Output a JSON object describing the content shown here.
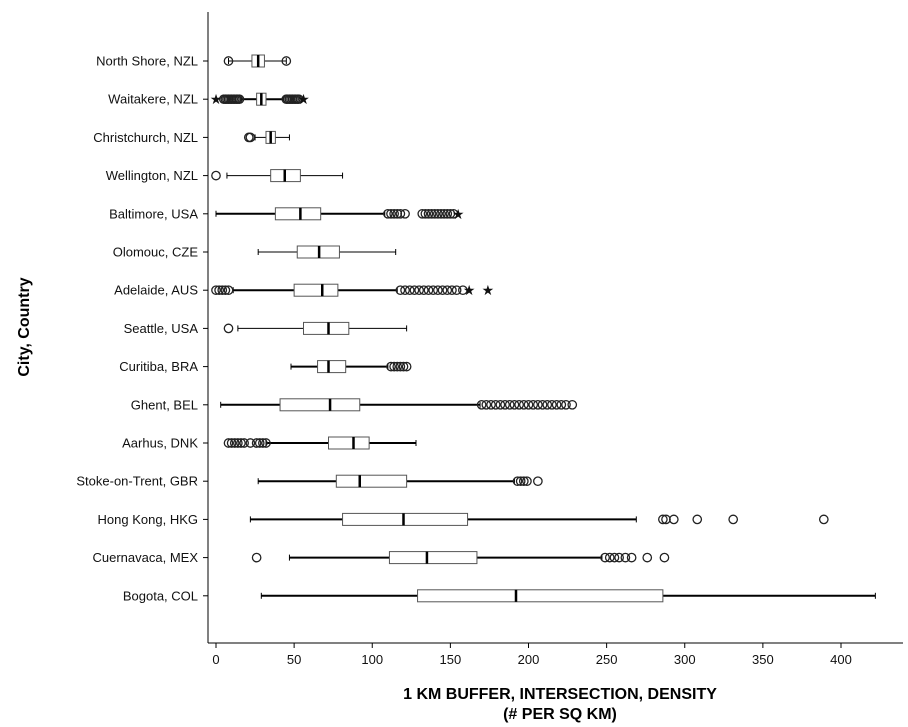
{
  "chart_data": {
    "type": "boxplot",
    "orientation": "horizontal",
    "xlabel_line1": "1 KM BUFFER, INTERSECTION, DENSITY",
    "xlabel_line2": "(# PER SQ KM)",
    "ylabel": "City, Country",
    "xlim": [
      -4,
      440
    ],
    "xticks": [
      0,
      50,
      100,
      150,
      200,
      250,
      300,
      350,
      400
    ],
    "grid": false,
    "series": [
      {
        "name": "North Shore, NZL",
        "whisker_low": 8,
        "q1": 23,
        "median": 27,
        "q3": 31,
        "whisker_high": 45,
        "outliers": [
          8,
          45
        ],
        "extremes": []
      },
      {
        "name": "Waitakere, NZL",
        "whisker_low": 16,
        "q1": 26,
        "median": 29,
        "q3": 32,
        "whisker_high": 43,
        "outliers": [
          5,
          6,
          7,
          8,
          9,
          10,
          11,
          12,
          13,
          14,
          15,
          45,
          46,
          47,
          48,
          49,
          50,
          51,
          52,
          53
        ],
        "extremes": [
          0,
          56
        ]
      },
      {
        "name": "Christchurch, NZL",
        "whisker_low": 25,
        "q1": 32,
        "median": 35,
        "q3": 38,
        "whisker_high": 47,
        "outliers": [
          21,
          22
        ],
        "extremes": []
      },
      {
        "name": "Wellington, NZL",
        "whisker_low": 7,
        "q1": 35,
        "median": 44,
        "q3": 54,
        "whisker_high": 81,
        "outliers": [
          0
        ],
        "extremes": []
      },
      {
        "name": "Baltimore, USA",
        "whisker_low": 0,
        "q1": 38,
        "median": 54,
        "q3": 67,
        "whisker_high": 108,
        "outliers": [
          110,
          112,
          114,
          116,
          118,
          121,
          132,
          134,
          136,
          138,
          140,
          142,
          144,
          146,
          148,
          150,
          152
        ],
        "extremes": [
          155
        ]
      },
      {
        "name": "Olomouc, CZE",
        "whisker_low": 27,
        "q1": 52,
        "median": 66,
        "q3": 79,
        "whisker_high": 115,
        "outliers": [],
        "extremes": []
      },
      {
        "name": "Adelaide, AUS",
        "whisker_low": 11,
        "q1": 50,
        "median": 68,
        "q3": 78,
        "whisker_high": 116,
        "outliers": [
          0,
          2,
          4,
          6,
          8,
          118,
          121,
          124,
          127,
          130,
          133,
          136,
          139,
          142,
          145,
          148,
          151,
          154,
          158
        ],
        "extremes": [
          162,
          174
        ]
      },
      {
        "name": "Seattle, USA",
        "whisker_low": 14,
        "q1": 56,
        "median": 72,
        "q3": 85,
        "whisker_high": 122,
        "outliers": [
          8
        ],
        "extremes": []
      },
      {
        "name": "Curitiba, BRA",
        "whisker_low": 48,
        "q1": 65,
        "median": 72,
        "q3": 83,
        "whisker_high": 110,
        "outliers": [
          112,
          114,
          116,
          118,
          120,
          122
        ],
        "extremes": []
      },
      {
        "name": "Ghent, BEL",
        "whisker_low": 3,
        "q1": 41,
        "median": 73,
        "q3": 92,
        "whisker_high": 169,
        "outliers": [
          170,
          173,
          176,
          179,
          182,
          185,
          188,
          191,
          194,
          197,
          200,
          203,
          206,
          209,
          212,
          215,
          218,
          221,
          224,
          228
        ],
        "extremes": []
      },
      {
        "name": "Aarhus, DNK",
        "whisker_low": 32,
        "q1": 72,
        "median": 88,
        "q3": 98,
        "whisker_high": 128,
        "outliers": [
          8,
          10,
          12,
          14,
          16,
          18,
          22,
          26,
          28,
          30,
          32
        ],
        "extremes": []
      },
      {
        "name": "Stoke-on-Trent, GBR",
        "whisker_low": 27,
        "q1": 77,
        "median": 92,
        "q3": 122,
        "whisker_high": 191,
        "outliers": [
          193,
          195,
          197,
          199,
          206
        ],
        "extremes": []
      },
      {
        "name": "Hong Kong, HKG",
        "whisker_low": 22,
        "q1": 81,
        "median": 120,
        "q3": 161,
        "whisker_high": 269,
        "outliers": [
          286,
          288,
          293,
          308,
          331,
          389
        ],
        "extremes": []
      },
      {
        "name": "Cuernavaca, MEX",
        "whisker_low": 47,
        "q1": 111,
        "median": 135,
        "q3": 167,
        "whisker_high": 247,
        "outliers": [
          26,
          249,
          252,
          255,
          258,
          262,
          266,
          276,
          287
        ],
        "extremes": []
      },
      {
        "name": "Bogota, COL",
        "whisker_low": 29,
        "q1": 129,
        "median": 192,
        "q3": 286,
        "whisker_high": 422,
        "outliers": [],
        "extremes": []
      }
    ]
  }
}
